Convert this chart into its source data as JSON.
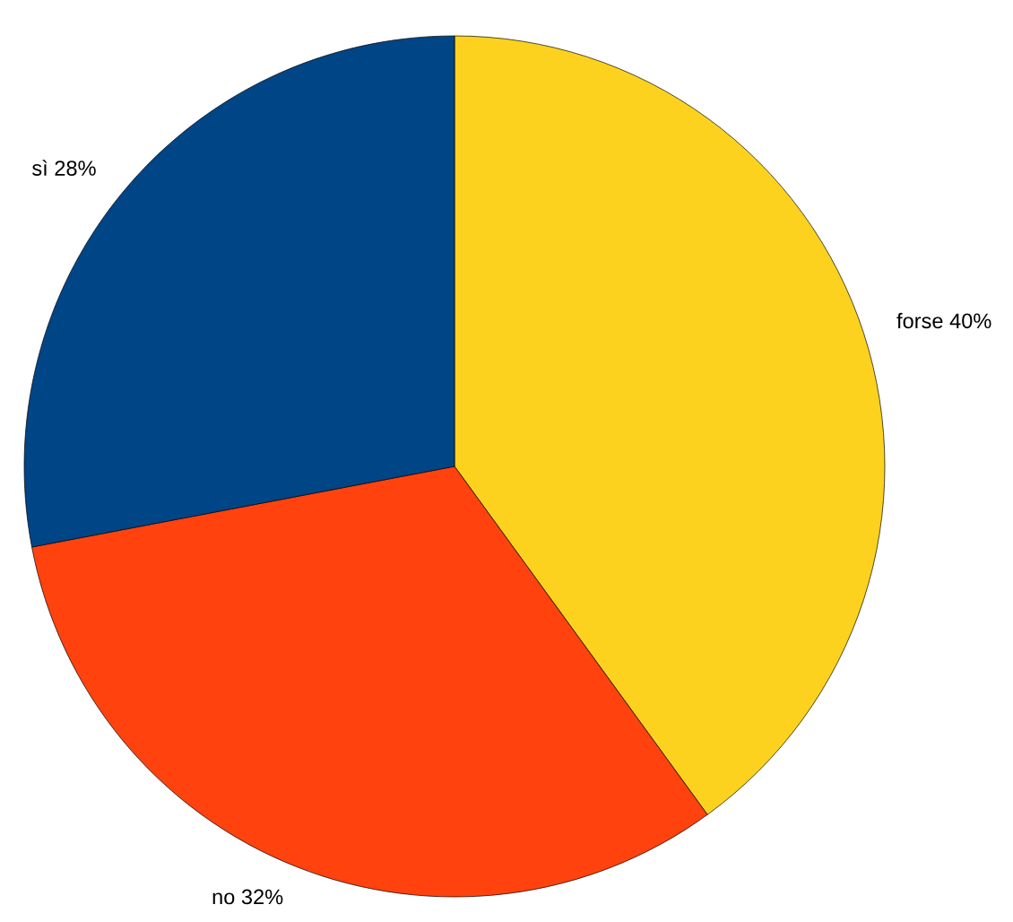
{
  "chart_data": {
    "type": "pie",
    "categories": [
      "forse",
      "no",
      "sì"
    ],
    "values": [
      40,
      32,
      28
    ],
    "value_labels": [
      "40%",
      "32%",
      "28%"
    ],
    "colors": [
      "#fcd21f",
      "#ff420e",
      "#004586"
    ],
    "legend": false
  }
}
